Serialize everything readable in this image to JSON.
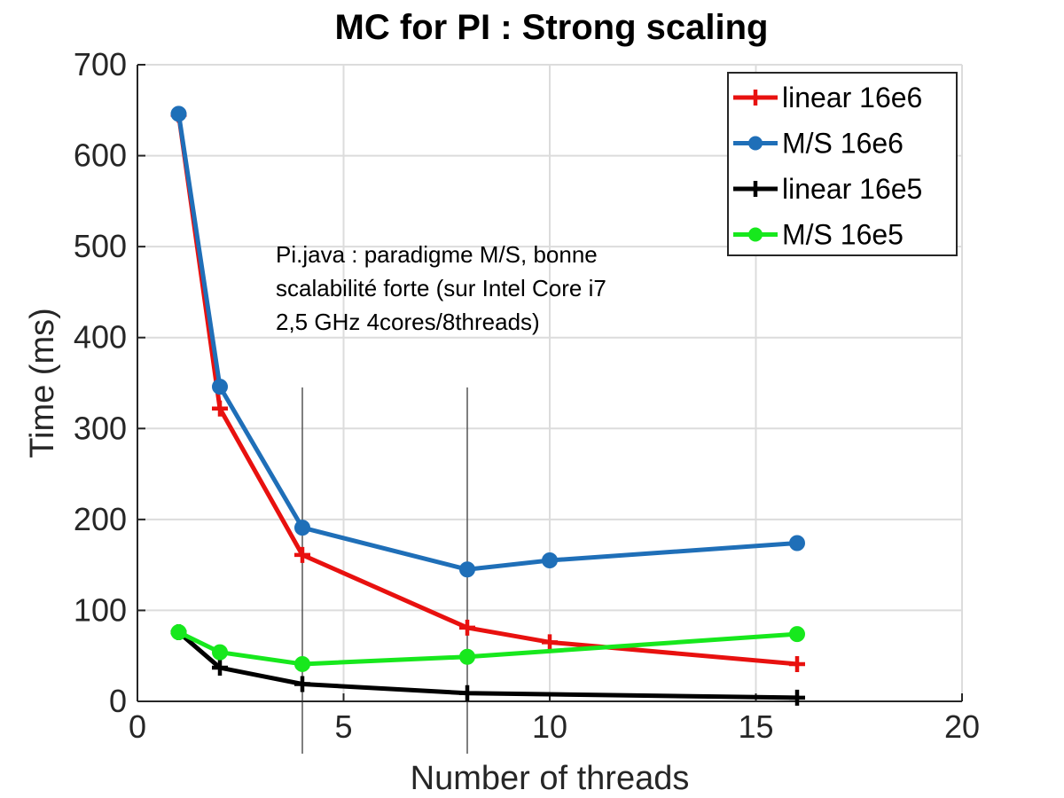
{
  "chart_data": {
    "type": "line",
    "title": "MC for PI : Strong scaling",
    "xlabel": "Number of threads",
    "ylabel": "Time (ms)",
    "xlim": [
      0,
      20
    ],
    "ylim": [
      0,
      700
    ],
    "xticks": [
      0,
      5,
      10,
      15,
      20
    ],
    "yticks": [
      0,
      100,
      200,
      300,
      400,
      500,
      600,
      700
    ],
    "grid": true,
    "legend_position": "top-right",
    "reference_lines_x": [
      4,
      8
    ],
    "annotation": [
      "Pi.java : paradigme M/S, bonne",
      "scalabilité forte (sur  Intel Core i7",
      "2,5 GHz 4cores/8threads)"
    ],
    "series": [
      {
        "name": "linear 16e6",
        "color": "#e8110f",
        "marker": "plus",
        "x": [
          1,
          2,
          4,
          8,
          10,
          16
        ],
        "y": [
          645,
          322,
          161,
          81,
          65,
          41
        ]
      },
      {
        "name": "M/S 16e6",
        "color": "#1f6fb8",
        "marker": "circle",
        "x": [
          1,
          2,
          4,
          8,
          10,
          16
        ],
        "y": [
          646,
          346,
          191,
          145,
          155,
          174
        ]
      },
      {
        "name": "linear 16e5",
        "color": "#000000",
        "marker": "plus",
        "x": [
          1,
          2,
          4,
          8,
          16
        ],
        "y": [
          76,
          37,
          19,
          9,
          4
        ]
      },
      {
        "name": "M/S 16e5",
        "color": "#17e81d",
        "marker": "circle",
        "x": [
          1,
          2,
          4,
          8,
          16
        ],
        "y": [
          76,
          54,
          41,
          49,
          74
        ]
      }
    ]
  }
}
